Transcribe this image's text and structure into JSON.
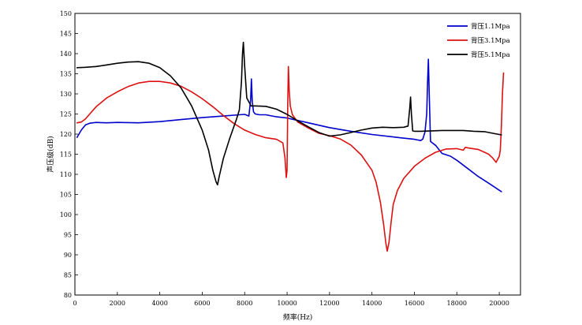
{
  "chart_data": {
    "type": "line",
    "title": "",
    "xlabel": "频率(Hz)",
    "ylabel": "声压级(dB)",
    "xlim": [
      0,
      21000
    ],
    "ylim": [
      80,
      150
    ],
    "xticks": [
      0,
      2000,
      4000,
      6000,
      8000,
      10000,
      12000,
      14000,
      16000,
      18000,
      20000
    ],
    "yticks": [
      80,
      85,
      90,
      95,
      100,
      105,
      110,
      115,
      120,
      125,
      130,
      135,
      140,
      145,
      150
    ],
    "legend_position": "top-right",
    "series": [
      {
        "name": "背压1.1Mpa",
        "color": "#0000cc",
        "x": [
          100,
          300,
          500,
          700,
          1000,
          1500,
          2000,
          3000,
          4000,
          5000,
          6000,
          7000,
          7500,
          8000,
          8100,
          8200,
          8280,
          8320,
          8360,
          8420,
          8500,
          8700,
          9000,
          9500,
          10000,
          10500,
          11000,
          12000,
          13000,
          14000,
          15000,
          16000,
          16300,
          16400,
          16500,
          16580,
          16620,
          16660,
          16700,
          16760,
          16850,
          17000,
          17300,
          17700,
          18000,
          18500,
          19000,
          19500,
          20100
        ],
        "values": [
          119.2,
          121.0,
          122.3,
          122.7,
          122.9,
          122.8,
          122.9,
          122.8,
          123.1,
          123.6,
          124.1,
          124.5,
          124.7,
          124.9,
          124.7,
          124.5,
          128.5,
          133.7,
          128.0,
          125.5,
          125.0,
          124.8,
          124.8,
          124.3,
          124.0,
          123.4,
          122.8,
          121.6,
          120.7,
          119.9,
          119.3,
          118.7,
          118.4,
          118.8,
          120.5,
          125.0,
          133.0,
          138.6,
          130.0,
          118.2,
          117.8,
          117.2,
          115.2,
          114.5,
          113.5,
          111.5,
          109.5,
          107.8,
          105.7
        ]
      },
      {
        "name": "背压3.1Mpa",
        "color": "#dd1111",
        "x": [
          100,
          300,
          500,
          700,
          1000,
          1500,
          2000,
          2500,
          3000,
          3500,
          4000,
          4500,
          5000,
          5500,
          6000,
          6500,
          7000,
          7500,
          8000,
          8500,
          9000,
          9500,
          9800,
          9900,
          9960,
          10000,
          10030,
          10060,
          10100,
          10150,
          10250,
          10500,
          11000,
          11500,
          12000,
          12500,
          13000,
          13500,
          14000,
          14200,
          14400,
          14550,
          14650,
          14720,
          14800,
          14900,
          15000,
          15200,
          15500,
          16000,
          16500,
          17000,
          17500,
          18000,
          18300,
          18400,
          18600,
          19000,
          19300,
          19500,
          19700,
          19850,
          20000,
          20050,
          20100,
          20150,
          20200
        ],
        "values": [
          122.8,
          123.0,
          123.8,
          125.0,
          126.8,
          129.0,
          130.5,
          131.8,
          132.7,
          133.1,
          133.1,
          132.7,
          131.9,
          130.5,
          128.8,
          126.8,
          124.6,
          122.6,
          121.0,
          119.9,
          119.1,
          118.7,
          117.8,
          114.0,
          109.2,
          111.0,
          128.0,
          136.8,
          131.0,
          127.0,
          124.8,
          123.0,
          121.5,
          120.2,
          119.6,
          118.8,
          117.3,
          114.8,
          111.0,
          108.0,
          103.0,
          97.5,
          93.0,
          90.9,
          93.0,
          98.0,
          102.5,
          106.0,
          109.0,
          112.0,
          114.0,
          115.5,
          116.3,
          116.4,
          116.0,
          116.7,
          116.5,
          116.2,
          115.5,
          115.0,
          114.0,
          113.0,
          114.5,
          116.0,
          122.0,
          130.0,
          135.2
        ]
      },
      {
        "name": "背压5.1Mpa",
        "color": "#000000",
        "x": [
          100,
          500,
          1000,
          1500,
          2000,
          2500,
          3000,
          3500,
          4000,
          4500,
          5000,
          5500,
          6000,
          6300,
          6500,
          6650,
          6720,
          6800,
          7000,
          7300,
          7600,
          7750,
          7850,
          7900,
          7940,
          8000,
          8100,
          8300,
          8500,
          9000,
          9500,
          10000,
          10500,
          11000,
          11500,
          12000,
          12500,
          13000,
          13500,
          14000,
          14500,
          15000,
          15500,
          15700,
          15780,
          15820,
          15860,
          15920,
          16000,
          16300,
          16800,
          17300,
          17800,
          18300,
          18800,
          19300,
          19800,
          20100
        ],
        "values": [
          136.5,
          136.6,
          136.8,
          137.2,
          137.6,
          137.9,
          138.0,
          137.6,
          136.5,
          134.5,
          131.5,
          127.0,
          121.0,
          116.0,
          111.0,
          108.2,
          107.4,
          109.5,
          114.0,
          119.0,
          123.5,
          126.0,
          133.0,
          140.0,
          142.8,
          137.0,
          129.0,
          127.0,
          127.0,
          126.9,
          126.2,
          124.9,
          123.3,
          121.8,
          120.4,
          119.5,
          119.8,
          120.4,
          121.0,
          121.5,
          121.7,
          121.6,
          121.7,
          122.0,
          126.5,
          129.2,
          125.0,
          120.8,
          120.7,
          120.7,
          120.8,
          120.9,
          120.9,
          120.9,
          120.7,
          120.6,
          120.1,
          119.8
        ]
      }
    ]
  }
}
